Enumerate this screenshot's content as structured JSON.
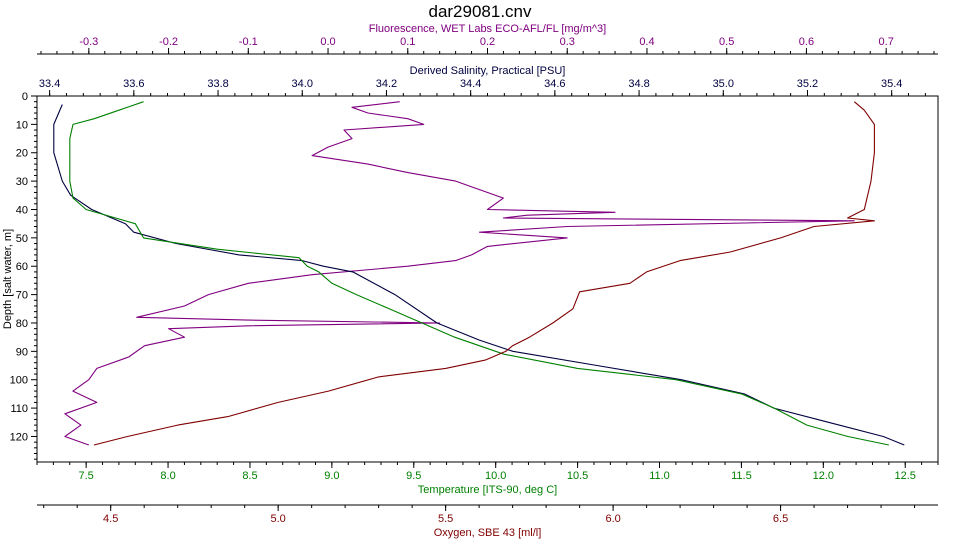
{
  "chart_data": {
    "type": "line",
    "title": "dar29081.cnv",
    "grid": false,
    "depth_axis": {
      "label": "Depth [salt water, m]",
      "range": [
        0,
        129
      ],
      "ticks": [
        0,
        10,
        20,
        30,
        40,
        50,
        60,
        70,
        80,
        90,
        100,
        110,
        120
      ],
      "tick_labels": [
        "0",
        "10",
        "20",
        "30",
        "40",
        "50",
        "60",
        "70",
        "80",
        "90",
        "100",
        "110",
        "120"
      ],
      "color": "#000000"
    },
    "x_axes": [
      {
        "key": "fluorescence",
        "label": "Fluorescence, WET Labs ECO-AFL/FL [mg/m^3]",
        "position": "top-outer",
        "color": "#800080",
        "range": [
          -0.365,
          0.765
        ],
        "ticks": [
          -0.3,
          -0.2,
          -0.1,
          0.0,
          0.1,
          0.2,
          0.3,
          0.4,
          0.5,
          0.6,
          0.7
        ],
        "tick_labels": [
          "-0.3",
          "-0.2",
          "-0.1",
          "0.0",
          "0.1",
          "0.2",
          "0.3",
          "0.4",
          "0.5",
          "0.6",
          "0.7"
        ]
      },
      {
        "key": "salinity",
        "label": "Derived Salinity, Practical [PSU]",
        "position": "top-inner",
        "color": "#000040",
        "range": [
          33.37,
          35.51
        ],
        "ticks": [
          33.4,
          33.6,
          33.8,
          34.0,
          34.2,
          34.4,
          34.6,
          34.8,
          35.0,
          35.2,
          35.4
        ],
        "tick_labels": [
          "33.4",
          "33.6",
          "33.8",
          "34.0",
          "34.2",
          "34.4",
          "34.6",
          "34.8",
          "35.0",
          "35.2",
          "35.4"
        ]
      },
      {
        "key": "temperature",
        "label": "Temperature [ITS-90, deg C]",
        "position": "bottom-inner",
        "color": "#008000",
        "range": [
          7.2,
          12.7
        ],
        "ticks": [
          7.5,
          8.0,
          8.5,
          9.0,
          9.5,
          10.0,
          10.5,
          11.0,
          11.5,
          12.0,
          12.5
        ],
        "tick_labels": [
          "7.5",
          "8.0",
          "8.5",
          "9.0",
          "9.5",
          "10.0",
          "10.5",
          "11.0",
          "11.5",
          "12.0",
          "12.5"
        ]
      },
      {
        "key": "oxygen",
        "label": "Oxygen, SBE 43 [ml/l]",
        "position": "bottom-outer",
        "color": "#800000",
        "range": [
          4.28,
          6.97
        ],
        "ticks": [
          4.5,
          5.0,
          5.5,
          6.0,
          6.5
        ],
        "tick_labels": [
          "4.5",
          "5.0",
          "5.5",
          "6.0",
          "6.5"
        ]
      }
    ],
    "series": [
      {
        "axis": "fluorescence",
        "color": "#800080",
        "depth": [
          2,
          4,
          6,
          8,
          10,
          12,
          15,
          18,
          21,
          24,
          27,
          30,
          33,
          36,
          40,
          41,
          42,
          43,
          44,
          46,
          48,
          50,
          53,
          56,
          58,
          60,
          63,
          66,
          70,
          74,
          78,
          79,
          80,
          81,
          82,
          85,
          88,
          92,
          96,
          100,
          104,
          108,
          112,
          116,
          120,
          123
        ],
        "values": [
          0.09,
          0.03,
          0.05,
          0.1,
          0.12,
          0.02,
          0.03,
          0.0,
          -0.02,
          0.05,
          0.1,
          0.16,
          0.19,
          0.22,
          0.2,
          0.36,
          0.25,
          0.22,
          0.66,
          0.3,
          0.19,
          0.3,
          0.2,
          0.18,
          0.16,
          0.1,
          -0.02,
          -0.1,
          -0.15,
          -0.18,
          -0.24,
          -0.1,
          0.14,
          -0.1,
          -0.2,
          -0.18,
          -0.23,
          -0.25,
          -0.29,
          -0.3,
          -0.32,
          -0.29,
          -0.33,
          -0.31,
          -0.33,
          -0.3
        ]
      },
      {
        "axis": "salinity",
        "color": "#000040",
        "depth": [
          3,
          10,
          20,
          30,
          35,
          40,
          45,
          48,
          52,
          56,
          58,
          60,
          62,
          70,
          80,
          86,
          90,
          95,
          100,
          105,
          110,
          115,
          120,
          123
        ],
        "values": [
          33.43,
          33.41,
          33.41,
          33.43,
          33.45,
          33.5,
          33.58,
          33.6,
          33.7,
          33.85,
          34.0,
          34.05,
          34.12,
          34.22,
          34.32,
          34.42,
          34.5,
          34.7,
          34.9,
          35.05,
          35.12,
          35.25,
          35.38,
          35.43
        ]
      },
      {
        "axis": "temperature",
        "color": "#008000",
        "depth": [
          2,
          5,
          8,
          10,
          15,
          20,
          30,
          36,
          40,
          45,
          50,
          54,
          57,
          60,
          62,
          66,
          70,
          75,
          80,
          85,
          88,
          91,
          96,
          100,
          105,
          110,
          116,
          120,
          123
        ],
        "values": [
          7.85,
          7.7,
          7.55,
          7.42,
          7.4,
          7.4,
          7.4,
          7.42,
          7.5,
          7.8,
          7.85,
          8.3,
          8.8,
          8.85,
          8.92,
          9.0,
          9.15,
          9.35,
          9.55,
          9.75,
          9.9,
          10.05,
          10.5,
          11.1,
          11.5,
          11.7,
          11.9,
          12.15,
          12.4
        ]
      },
      {
        "axis": "oxygen",
        "color": "#800000",
        "depth": [
          2,
          5,
          10,
          20,
          30,
          40,
          43,
          44,
          46,
          50,
          55,
          58,
          62,
          66,
          69,
          75,
          80,
          85,
          88,
          90,
          93,
          96,
          99,
          104,
          108,
          113,
          116,
          120,
          123
        ],
        "values": [
          6.72,
          6.75,
          6.78,
          6.78,
          6.77,
          6.75,
          6.7,
          6.78,
          6.6,
          6.5,
          6.35,
          6.2,
          6.1,
          6.05,
          5.9,
          5.88,
          5.82,
          5.75,
          5.7,
          5.68,
          5.62,
          5.5,
          5.3,
          5.15,
          5.0,
          4.85,
          4.7,
          4.55,
          4.45
        ]
      }
    ]
  }
}
